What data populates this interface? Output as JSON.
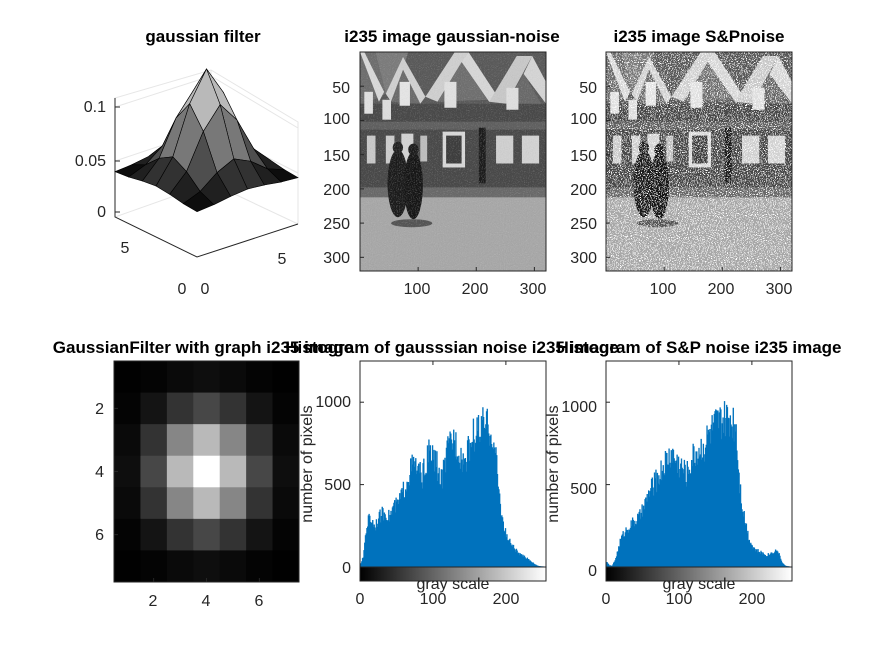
{
  "chart_data": [
    {
      "type": "surface",
      "title": "gaussian filter",
      "zlim": [
        0,
        0.12
      ],
      "z_ticks": [
        "0",
        "0.05",
        "0.1"
      ],
      "x_ticks": [
        "0",
        "5"
      ],
      "y_ticks": [
        "0",
        "5"
      ],
      "grid": "on",
      "colormap": "gray",
      "size": 7,
      "sigma": 1.25,
      "peak": 0.105
    },
    {
      "type": "image",
      "title": "i235 image gaussian-noise",
      "x_ticks": [
        "100",
        "200",
        "300"
      ],
      "y_ticks": [
        "50",
        "100",
        "150",
        "200",
        "250",
        "300"
      ],
      "xlim": [
        0,
        320
      ],
      "ylim": [
        0,
        320
      ]
    },
    {
      "type": "image",
      "title": "i235 image S&Pnoise",
      "x_ticks": [
        "100",
        "200",
        "300"
      ],
      "y_ticks": [
        "50",
        "100",
        "150",
        "200",
        "250",
        "300"
      ],
      "xlim": [
        0,
        320
      ],
      "ylim": [
        0,
        320
      ]
    },
    {
      "type": "heatmap",
      "title": "GaussianFilter with graph i235 image",
      "x_ticks": [
        "2",
        "4",
        "6"
      ],
      "y_ticks": [
        "2",
        "4",
        "6"
      ],
      "xlim": [
        0.5,
        7.5
      ],
      "ylim": [
        0.5,
        7.5
      ],
      "colormap": "gray",
      "size": 7,
      "sigma": 1.25
    },
    {
      "type": "histogram",
      "title": "Histogram of gausssian noise i235 image",
      "xlabel": "gray scale",
      "ylabel": "number of pixels",
      "xlim": [
        0,
        255
      ],
      "ylim": [
        0,
        1250
      ],
      "x_ticks": [
        "0",
        "100",
        "200"
      ],
      "y_ticks": [
        "0",
        "500",
        "1000"
      ],
      "color": "#0072bd",
      "colorbar": "gray",
      "profile": [
        [
          0,
          5
        ],
        [
          4,
          60
        ],
        [
          8,
          230
        ],
        [
          12,
          300
        ],
        [
          16,
          285
        ],
        [
          20,
          245
        ],
        [
          24,
          290
        ],
        [
          30,
          320
        ],
        [
          35,
          330
        ],
        [
          40,
          300
        ],
        [
          45,
          360
        ],
        [
          50,
          370
        ],
        [
          55,
          415
        ],
        [
          60,
          470
        ],
        [
          65,
          545
        ],
        [
          70,
          600
        ],
        [
          75,
          620
        ],
        [
          80,
          570
        ],
        [
          85,
          550
        ],
        [
          90,
          620
        ],
        [
          95,
          700
        ],
        [
          100,
          660
        ],
        [
          105,
          620
        ],
        [
          108,
          560
        ],
        [
          110,
          510
        ],
        [
          113,
          560
        ],
        [
          116,
          620
        ],
        [
          120,
          700
        ],
        [
          124,
          760
        ],
        [
          128,
          780
        ],
        [
          132,
          750
        ],
        [
          136,
          700
        ],
        [
          140,
          660
        ],
        [
          144,
          640
        ],
        [
          148,
          700
        ],
        [
          152,
          770
        ],
        [
          156,
          800
        ],
        [
          160,
          820
        ],
        [
          164,
          830
        ],
        [
          168,
          850
        ],
        [
          172,
          860
        ],
        [
          176,
          840
        ],
        [
          180,
          830
        ],
        [
          182,
          760
        ],
        [
          186,
          660
        ],
        [
          188,
          560
        ],
        [
          190,
          460
        ],
        [
          193,
          350
        ],
        [
          196,
          260
        ],
        [
          200,
          190
        ],
        [
          205,
          150
        ],
        [
          210,
          120
        ],
        [
          215,
          90
        ],
        [
          220,
          70
        ],
        [
          225,
          60
        ],
        [
          230,
          50
        ],
        [
          235,
          30
        ],
        [
          240,
          12
        ],
        [
          245,
          4
        ],
        [
          255,
          0
        ]
      ]
    },
    {
      "type": "histogram",
      "title": "Histogram of S&P noise  i235 image",
      "xlabel": "gray scale",
      "ylabel": "number of pixels",
      "xlim": [
        0,
        255
      ],
      "ylim": [
        0,
        1250
      ],
      "x_ticks": [
        "0",
        "100",
        "200"
      ],
      "y_ticks": [
        "0",
        "500",
        "1000"
      ],
      "color": "#0072bd",
      "colorbar": "gray",
      "profile": [
        [
          0,
          30
        ],
        [
          4,
          10
        ],
        [
          8,
          5
        ],
        [
          12,
          40
        ],
        [
          16,
          100
        ],
        [
          20,
          170
        ],
        [
          25,
          210
        ],
        [
          30,
          240
        ],
        [
          35,
          260
        ],
        [
          40,
          280
        ],
        [
          45,
          300
        ],
        [
          50,
          340
        ],
        [
          55,
          400
        ],
        [
          60,
          460
        ],
        [
          65,
          500
        ],
        [
          70,
          530
        ],
        [
          75,
          580
        ],
        [
          80,
          630
        ],
        [
          85,
          660
        ],
        [
          90,
          690
        ],
        [
          95,
          650
        ],
        [
          100,
          620
        ],
        [
          105,
          600
        ],
        [
          110,
          560
        ],
        [
          115,
          620
        ],
        [
          120,
          680
        ],
        [
          125,
          700
        ],
        [
          130,
          720
        ],
        [
          135,
          740
        ],
        [
          140,
          800
        ],
        [
          145,
          830
        ],
        [
          150,
          860
        ],
        [
          155,
          870
        ],
        [
          160,
          880
        ],
        [
          165,
          890
        ],
        [
          170,
          900
        ],
        [
          175,
          880
        ],
        [
          178,
          860
        ],
        [
          180,
          700
        ],
        [
          182,
          560
        ],
        [
          185,
          430
        ],
        [
          188,
          330
        ],
        [
          192,
          250
        ],
        [
          195,
          180
        ],
        [
          200,
          130
        ],
        [
          205,
          100
        ],
        [
          210,
          90
        ],
        [
          215,
          80
        ],
        [
          220,
          70
        ],
        [
          225,
          80
        ],
        [
          230,
          95
        ],
        [
          235,
          100
        ],
        [
          238,
          60
        ],
        [
          242,
          20
        ],
        [
          246,
          5
        ],
        [
          255,
          0
        ]
      ]
    }
  ]
}
